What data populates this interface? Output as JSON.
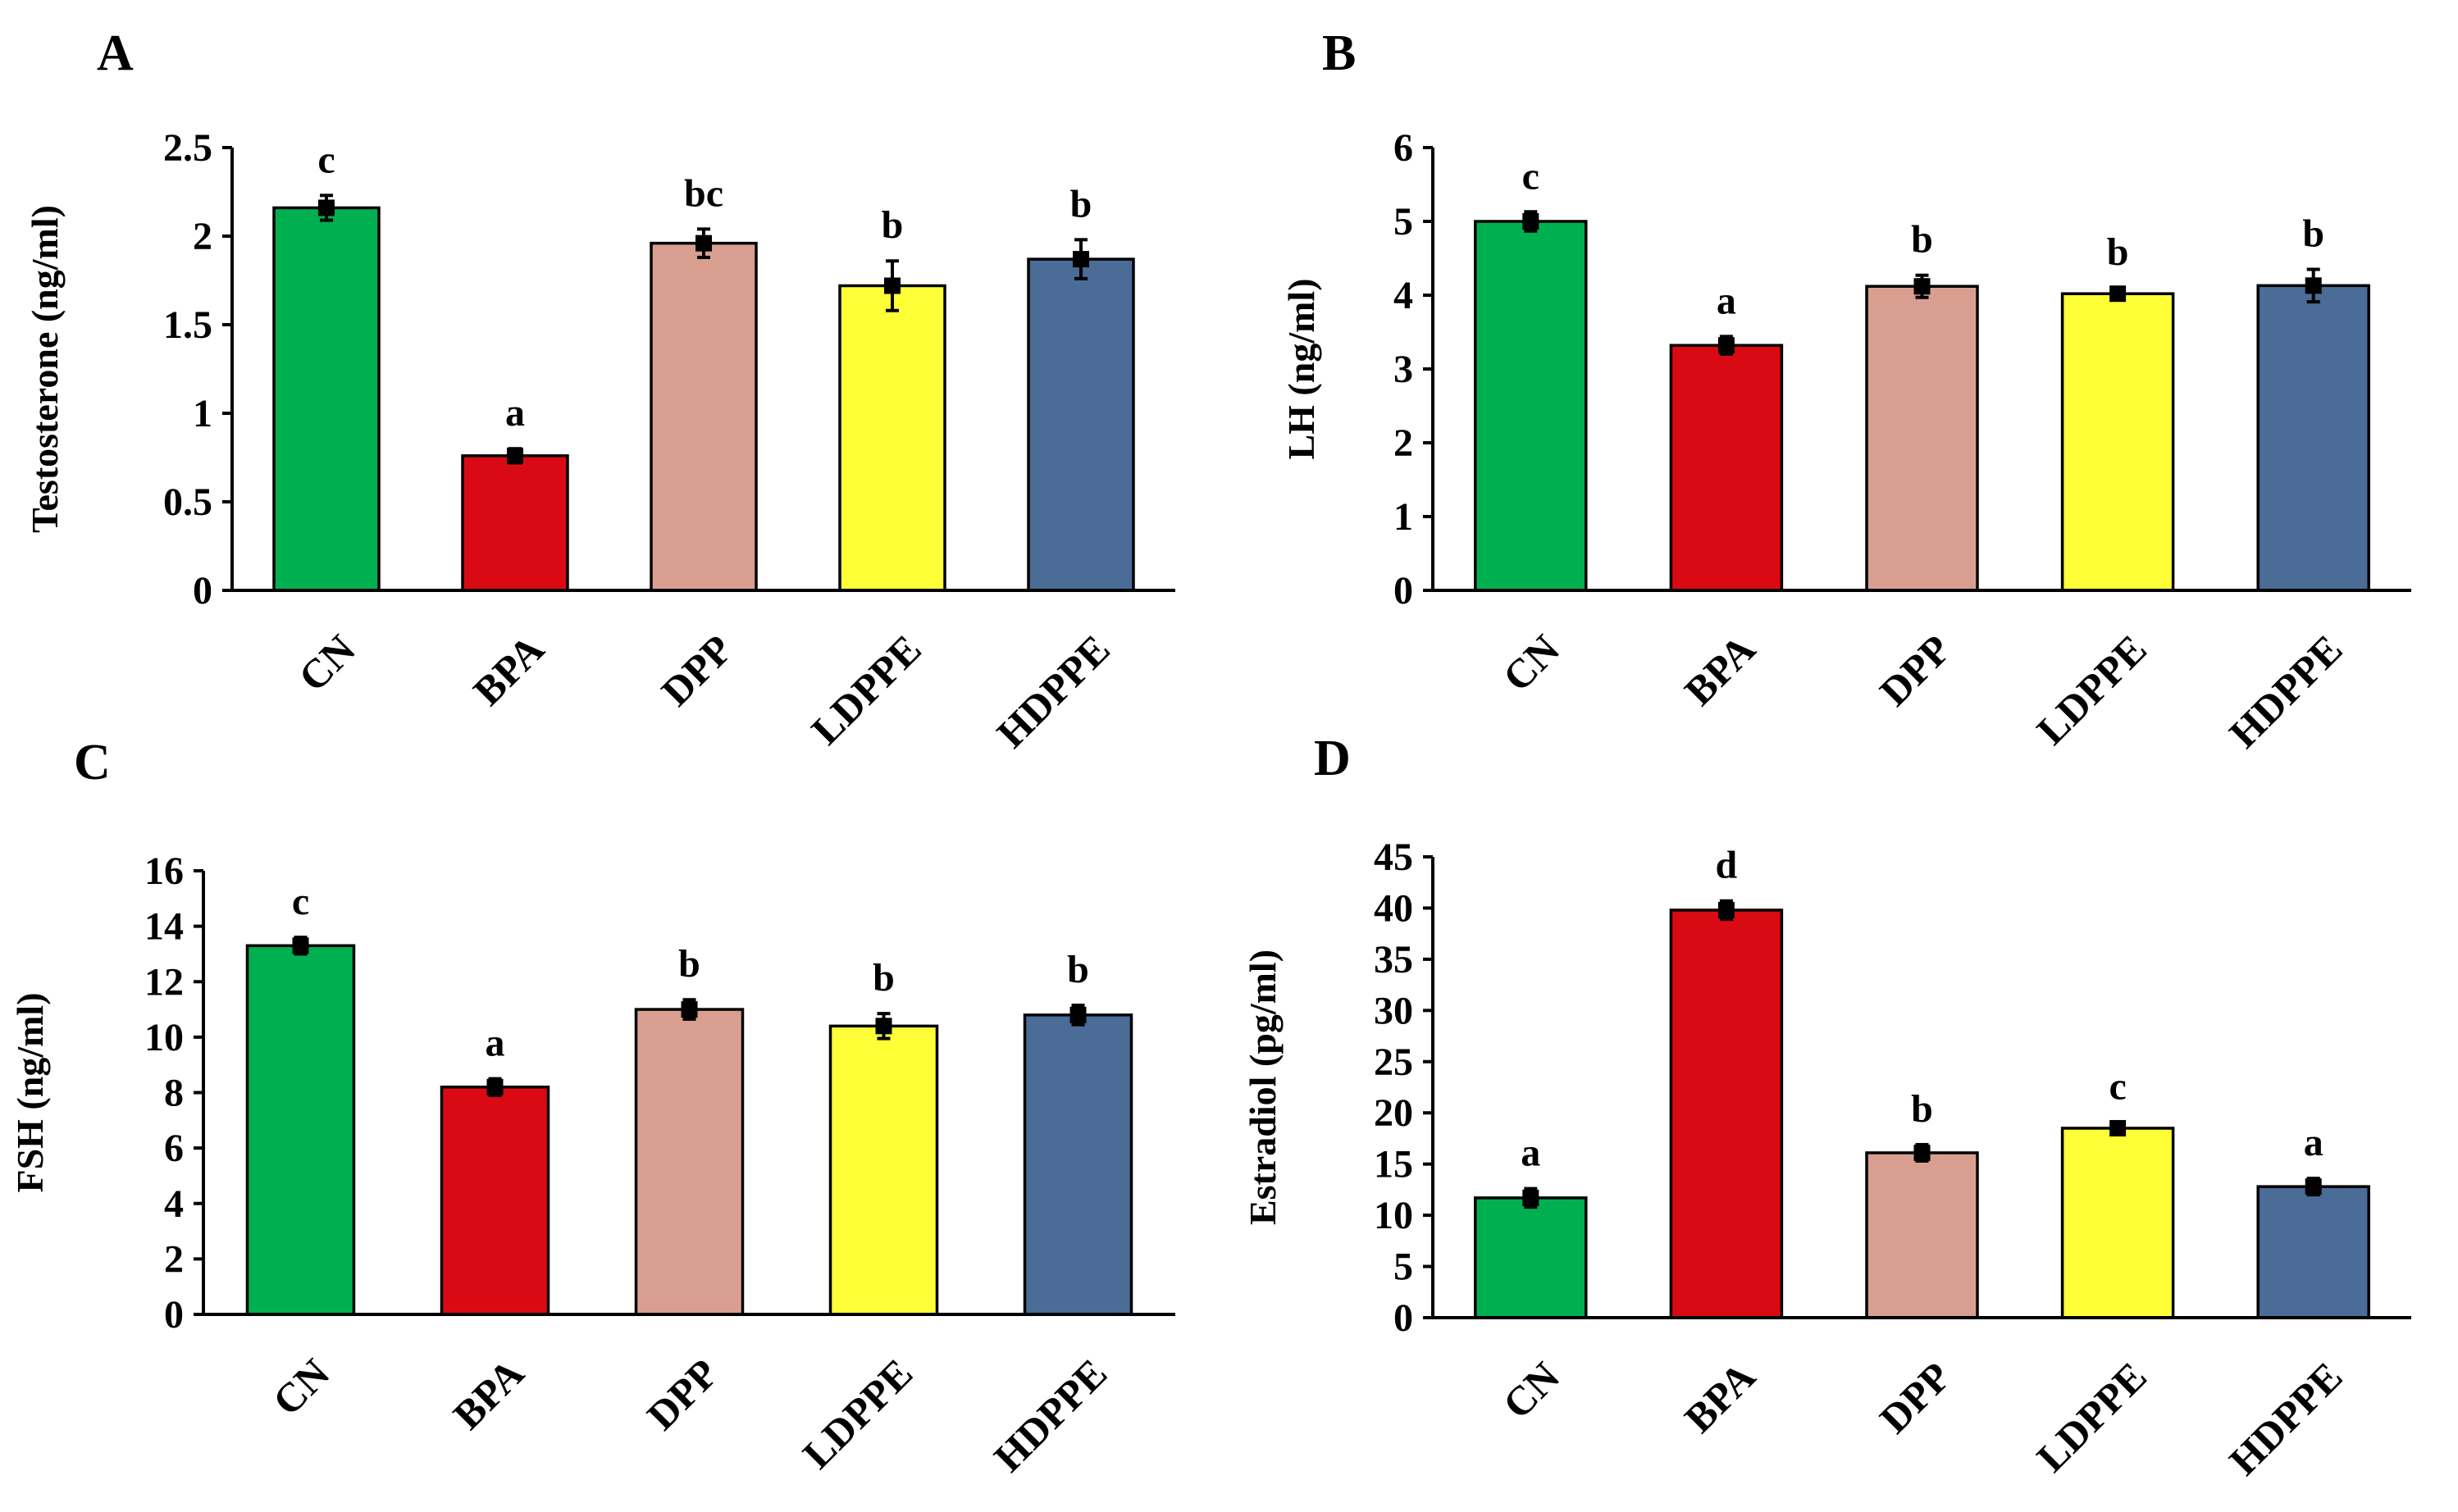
{
  "chart_data": [
    {
      "type": "bar",
      "panel_label": "A",
      "title": "",
      "xlabel": "",
      "ylabel": "Testosterone (ng/ml)",
      "categories": [
        "CN",
        "BPA",
        "DPP",
        "LDPPE",
        "HDPPE"
      ],
      "values": [
        2.16,
        0.76,
        1.96,
        1.72,
        1.87
      ],
      "errors": [
        0.07,
        0.04,
        0.08,
        0.14,
        0.11
      ],
      "significance": [
        "c",
        "a",
        "bc",
        "b",
        "b"
      ],
      "ylim": [
        0,
        2.5
      ],
      "yticks": [
        0,
        0.5,
        1,
        1.5,
        2,
        2.5
      ],
      "ytick_labels": [
        "0",
        "0.5",
        "1",
        "1.5",
        "2",
        "2.5"
      ],
      "grid": false
    },
    {
      "type": "bar",
      "panel_label": "B",
      "title": "",
      "xlabel": "",
      "ylabel": "LH (ng/ml)",
      "categories": [
        "CN",
        "BPA",
        "DPP",
        "LDPPE",
        "HDPPE"
      ],
      "values": [
        5.0,
        3.32,
        4.12,
        4.02,
        4.13
      ],
      "errors": [
        0.13,
        0.12,
        0.15,
        0.08,
        0.22
      ],
      "significance": [
        "c",
        "a",
        "b",
        "b",
        "b"
      ],
      "ylim": [
        0,
        6
      ],
      "yticks": [
        0,
        1,
        2,
        3,
        4,
        5,
        6
      ],
      "ytick_labels": [
        "0",
        "1",
        "2",
        "3",
        "4",
        "5",
        "6"
      ],
      "grid": false
    },
    {
      "type": "bar",
      "panel_label": "C",
      "title": "",
      "xlabel": "",
      "ylabel": "FSH (ng/ml)",
      "categories": [
        "CN",
        "BPA",
        "DPP",
        "LDPPE",
        "HDPPE"
      ],
      "values": [
        13.3,
        8.2,
        11.0,
        10.4,
        10.8
      ],
      "errors": [
        0.3,
        0.3,
        0.35,
        0.45,
        0.35
      ],
      "significance": [
        "c",
        "a",
        "b",
        "b",
        "b"
      ],
      "ylim": [
        0,
        16
      ],
      "yticks": [
        0,
        2,
        4,
        6,
        8,
        10,
        12,
        14,
        16
      ],
      "ytick_labels": [
        "0",
        "2",
        "4",
        "6",
        "8",
        "10",
        "12",
        "14",
        "16"
      ],
      "grid": false
    },
    {
      "type": "bar",
      "panel_label": "D",
      "title": "",
      "xlabel": "",
      "ylabel": "Estradiol (pg/ml)",
      "categories": [
        "CN",
        "BPA",
        "DPP",
        "LDPPE",
        "HDPPE"
      ],
      "values": [
        11.7,
        39.8,
        16.1,
        18.5,
        12.8
      ],
      "errors": [
        0.9,
        0.9,
        0.8,
        0.6,
        0.8
      ],
      "significance": [
        "a",
        "d",
        "b",
        "c",
        "a"
      ],
      "ylim": [
        0,
        45
      ],
      "yticks": [
        0,
        5,
        10,
        15,
        20,
        25,
        30,
        35,
        40,
        45
      ],
      "ytick_labels": [
        "0",
        "5",
        "10",
        "15",
        "20",
        "25",
        "30",
        "35",
        "40",
        "45"
      ],
      "grid": false
    }
  ],
  "colors": {
    "CN": "#00B050",
    "BPA": "#DA0A14",
    "DPP": "#D89F90",
    "LDPPE": "#FFFF38",
    "HDPPE": "#4A6C96",
    "axis": "#000000",
    "error_bar": "#000000"
  }
}
